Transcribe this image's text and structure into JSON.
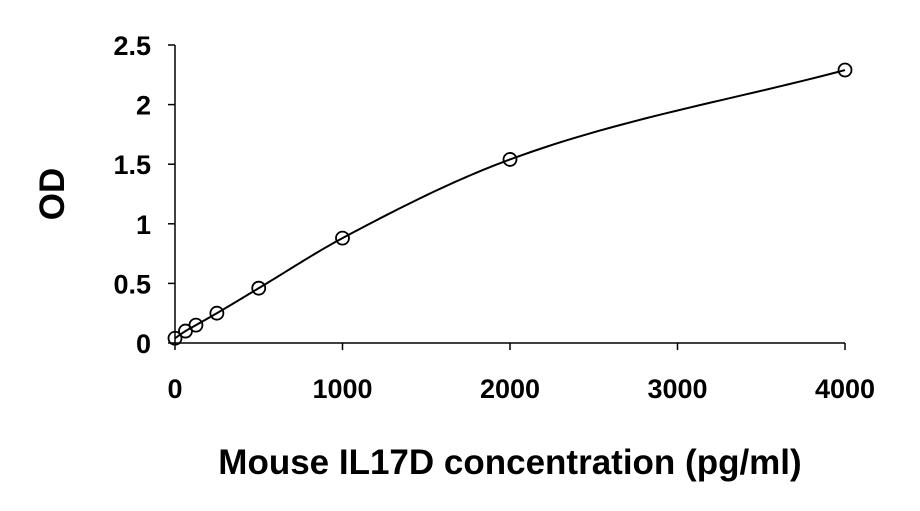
{
  "chart_data": {
    "type": "scatter",
    "title": "",
    "xlabel": "Mouse IL17D concentration (pg/ml)",
    "ylabel": "OD",
    "xlim": [
      0,
      4000
    ],
    "ylim": [
      0,
      2.5
    ],
    "x_ticks": [
      0,
      1000,
      2000,
      3000,
      4000
    ],
    "y_ticks": [
      0,
      0.5,
      1,
      1.5,
      2,
      2.5
    ],
    "x_tick_labels": [
      "0",
      "1000",
      "2000",
      "3000",
      "4000"
    ],
    "y_tick_labels": [
      "0",
      "0.5",
      "1",
      "1.5",
      "2",
      "2.5"
    ],
    "grid": false,
    "legend": "none",
    "marker": "open-circle",
    "fit_line": "smooth-curve",
    "series": [
      {
        "x": [
          0,
          62.5,
          125,
          250,
          500,
          1000,
          2000,
          4000
        ],
        "y": [
          0.04,
          0.1,
          0.15,
          0.25,
          0.46,
          0.88,
          1.54,
          2.29
        ]
      }
    ]
  }
}
